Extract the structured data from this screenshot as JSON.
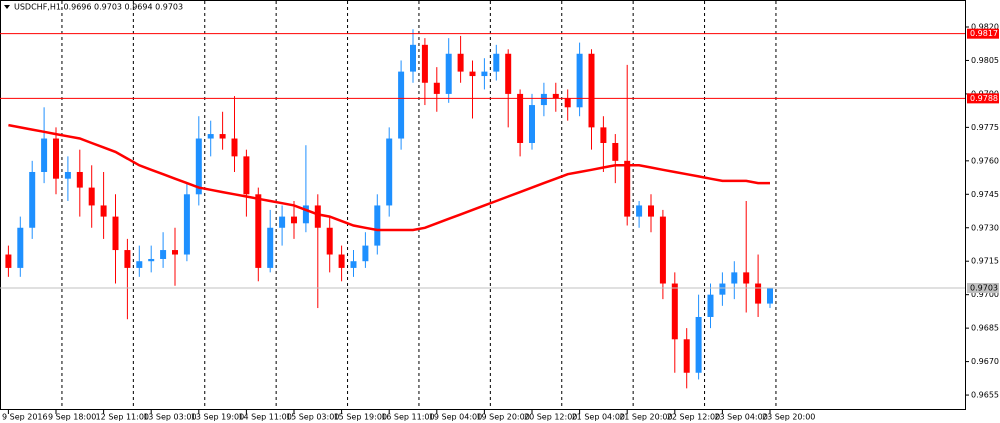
{
  "chart_data": {
    "type": "candlestick",
    "title": "USDCHF,H1  0.9696 0.9703 0.9694 0.9703",
    "categories": [
      "9 Sep 2016",
      null,
      null,
      null,
      "9 Sep 18:00",
      null,
      null,
      null,
      "12 Sep 11:00",
      null,
      null,
      null,
      "13 Sep 03:00",
      null,
      null,
      null,
      "13 Sep 19:00",
      null,
      null,
      null,
      "14 Sep 11:00",
      null,
      null,
      null,
      "15 Sep 03:00",
      null,
      null,
      null,
      "15 Sep 19:00",
      null,
      null,
      null,
      "16 Sep 11:00",
      null,
      null,
      null,
      "19 Sep 04:00",
      null,
      null,
      null,
      "19 Sep 20:00",
      null,
      null,
      null,
      "20 Sep 12:00",
      null,
      null,
      null,
      "21 Sep 04:00",
      null,
      null,
      null,
      "21 Sep 20:00",
      null,
      null,
      null,
      "22 Sep 12:00",
      null,
      null,
      null,
      "23 Sep 04:00",
      null,
      null,
      null,
      "23 Sep 20:00"
    ],
    "open": [
      0.9718,
      0.9712,
      0.973,
      0.9755,
      0.977,
      0.9752,
      0.9755,
      0.9748,
      0.974,
      0.9735,
      0.972,
      0.9712,
      0.9715,
      0.9716,
      0.972,
      0.9718,
      0.9745,
      0.977,
      0.9772,
      0.977,
      0.9762,
      0.9745,
      0.9712,
      0.973,
      0.9735,
      0.9732,
      0.974,
      0.973,
      0.9718,
      0.9712,
      0.9715,
      0.9722,
      0.974,
      0.977,
      0.98,
      0.9812,
      0.9795,
      0.979,
      0.9808,
      0.98,
      0.9798,
      0.98,
      0.9808,
      0.979,
      0.9768,
      0.9785,
      0.979,
      0.9788,
      0.9784,
      0.9808,
      0.9775,
      0.9768,
      0.976,
      0.9735,
      0.974,
      0.9735,
      0.9705,
      0.968,
      0.9665,
      0.969,
      0.97,
      0.9705,
      0.971,
      0.9705,
      0.9696
    ],
    "high": [
      0.9722,
      0.9735,
      0.976,
      0.9784,
      0.9775,
      0.9762,
      0.9765,
      0.9758,
      0.9755,
      0.9745,
      0.9725,
      0.9722,
      0.9722,
      0.9728,
      0.973,
      0.975,
      0.978,
      0.9778,
      0.9782,
      0.9789,
      0.9765,
      0.9748,
      0.9738,
      0.974,
      0.9742,
      0.9767,
      0.9745,
      0.9735,
      0.9722,
      0.972,
      0.9728,
      0.9745,
      0.9775,
      0.9805,
      0.9819,
      0.9815,
      0.9802,
      0.9815,
      0.9816,
      0.9805,
      0.9806,
      0.9812,
      0.981,
      0.9792,
      0.979,
      0.9795,
      0.9795,
      0.9792,
      0.9813,
      0.981,
      0.978,
      0.9772,
      0.9803,
      0.9742,
      0.9745,
      0.9738,
      0.971,
      0.9685,
      0.97,
      0.9705,
      0.971,
      0.9715,
      0.9742,
      0.9718,
      0.9703
    ],
    "low": [
      0.9708,
      0.9708,
      0.9725,
      0.975,
      0.9745,
      0.9742,
      0.9735,
      0.973,
      0.9725,
      0.9705,
      0.9689,
      0.9708,
      0.971,
      0.9712,
      0.9704,
      0.9715,
      0.974,
      0.9762,
      0.9765,
      0.9755,
      0.9735,
      0.9706,
      0.971,
      0.9722,
      0.9725,
      0.9728,
      0.9694,
      0.971,
      0.9706,
      0.9708,
      0.9712,
      0.9718,
      0.9735,
      0.9765,
      0.9795,
      0.9785,
      0.9782,
      0.9786,
      0.9795,
      0.9779,
      0.9792,
      0.9796,
      0.9775,
      0.9762,
      0.9765,
      0.978,
      0.9782,
      0.9778,
      0.978,
      0.9765,
      0.9755,
      0.975,
      0.9731,
      0.973,
      0.9728,
      0.9698,
      0.9665,
      0.9658,
      0.9662,
      0.9685,
      0.9695,
      0.9698,
      0.9692,
      0.969,
      0.9694
    ],
    "close": [
      0.9712,
      0.973,
      0.9755,
      0.977,
      0.9752,
      0.9755,
      0.9748,
      0.974,
      0.9735,
      0.972,
      0.9712,
      0.9715,
      0.9716,
      0.972,
      0.9718,
      0.9745,
      0.977,
      0.9772,
      0.977,
      0.9762,
      0.9745,
      0.9712,
      0.973,
      0.9735,
      0.9732,
      0.974,
      0.973,
      0.9718,
      0.9712,
      0.9715,
      0.9722,
      0.974,
      0.977,
      0.98,
      0.9812,
      0.9795,
      0.979,
      0.9808,
      0.98,
      0.9798,
      0.98,
      0.9808,
      0.979,
      0.9768,
      0.9785,
      0.979,
      0.9788,
      0.9784,
      0.9808,
      0.9775,
      0.9768,
      0.976,
      0.9735,
      0.974,
      0.9735,
      0.9705,
      0.968,
      0.9665,
      0.969,
      0.97,
      0.9705,
      0.971,
      0.9705,
      0.9696,
      0.9703
    ],
    "up_color": "#1e90ff",
    "down_color": "#ff0000",
    "moving_average": {
      "color": "#ff0000",
      "values": [
        0.9776,
        0.9775,
        0.9774,
        0.9773,
        0.9772,
        0.9771,
        0.977,
        0.9768,
        0.9766,
        0.9764,
        0.9761,
        0.9758,
        0.9756,
        0.9754,
        0.9752,
        0.975,
        0.9748,
        0.9747,
        0.9746,
        0.9745,
        0.9744,
        0.9743,
        0.9742,
        0.9741,
        0.974,
        0.9738,
        0.9736,
        0.9735,
        0.9733,
        0.9731,
        0.973,
        0.9729,
        0.9729,
        0.9729,
        0.9729,
        0.973,
        0.9732,
        0.9734,
        0.9736,
        0.9738,
        0.974,
        0.9742,
        0.9744,
        0.9746,
        0.9748,
        0.975,
        0.9752,
        0.9754,
        0.9755,
        0.9756,
        0.9757,
        0.9758,
        0.9758,
        0.9758,
        0.9757,
        0.9756,
        0.9755,
        0.9754,
        0.9753,
        0.9752,
        0.9751,
        0.9751,
        0.9751,
        0.975,
        0.975
      ]
    },
    "levels": [
      {
        "value": 0.9817,
        "label": "0.9817",
        "color": "#ff0000"
      },
      {
        "value": 0.9788,
        "label": "0.9788",
        "color": "#ff0000"
      },
      {
        "value": 0.9703,
        "label": "0.9703",
        "color": "#c0c0c0"
      }
    ],
    "ylim": [
      0.96483,
      0.98321
    ],
    "yticks": [
      {
        "value": 0.982,
        "label": "0.9820"
      },
      {
        "value": 0.9805,
        "label": "0.9805"
      },
      {
        "value": 0.979,
        "label": "0.9790"
      },
      {
        "value": 0.9775,
        "label": "0.9775"
      },
      {
        "value": 0.976,
        "label": "0.9760"
      },
      {
        "value": 0.9745,
        "label": "0.9745"
      },
      {
        "value": 0.973,
        "label": "0.9730"
      },
      {
        "value": 0.9715,
        "label": "0.9715"
      },
      {
        "value": 0.97,
        "label": "0.9700"
      },
      {
        "value": 0.9685,
        "label": "0.9685"
      },
      {
        "value": 0.967,
        "label": "0.9670"
      },
      {
        "value": 0.9655,
        "label": "0.9655"
      }
    ]
  }
}
